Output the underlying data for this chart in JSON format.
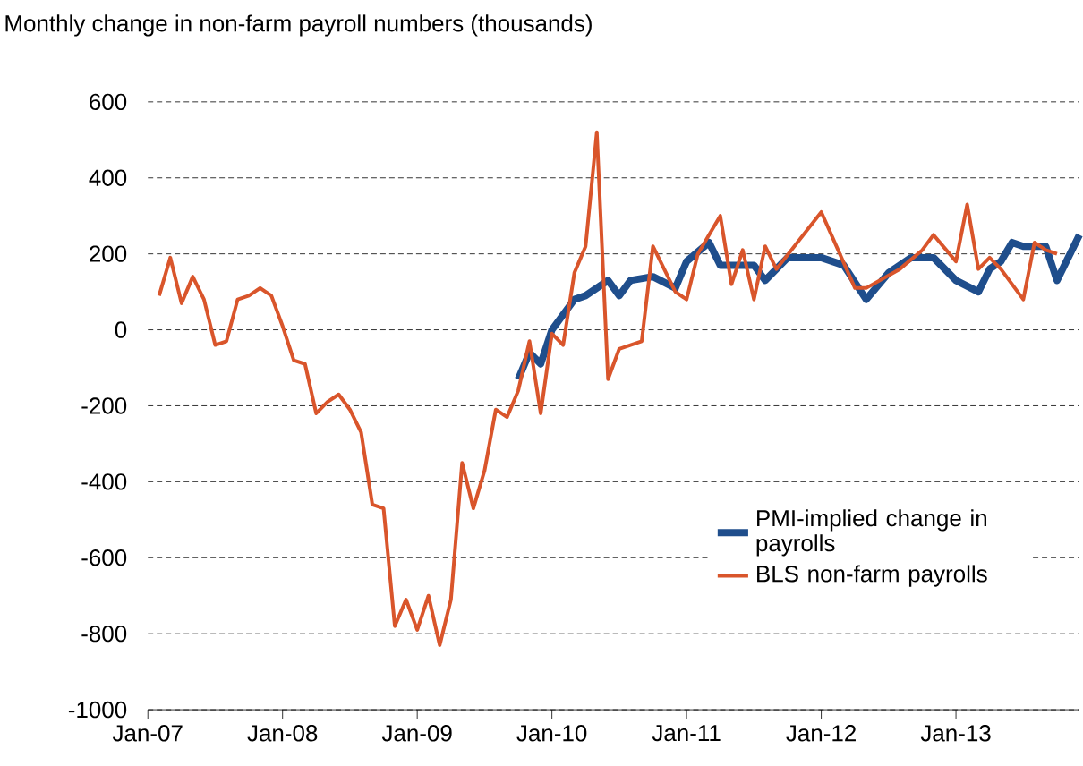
{
  "chart_data": {
    "type": "line",
    "title": "Monthly change in non-farm payroll numbers (thousands)",
    "ylim": [
      -1000,
      600
    ],
    "yticks": [
      -1000,
      -800,
      -600,
      -400,
      -200,
      0,
      200,
      400,
      600
    ],
    "xlim": [
      "2007-01",
      "2013-12"
    ],
    "xticks": [
      {
        "value": "2007-01",
        "label": "Jan-07"
      },
      {
        "value": "2008-01",
        "label": "Jan-08"
      },
      {
        "value": "2009-01",
        "label": "Jan-09"
      },
      {
        "value": "2010-01",
        "label": "Jan-10"
      },
      {
        "value": "2011-01",
        "label": "Jan-11"
      },
      {
        "value": "2012-01",
        "label": "Jan-12"
      },
      {
        "value": "2013-01",
        "label": "Jan-13"
      }
    ],
    "grid": "y",
    "legend": "bottom right",
    "series": [
      {
        "name": "PMI-implied change in payrolls",
        "color": "#1f4e8c",
        "x": [
          "2009-10",
          "2009-11",
          "2009-12",
          "2010-01",
          "2010-02",
          "2010-03",
          "2010-04",
          "2010-06",
          "2010-07",
          "2010-08",
          "2010-10",
          "2010-12",
          "2011-01",
          "2011-03",
          "2011-04",
          "2011-07",
          "2011-08",
          "2011-10",
          "2012-01",
          "2012-03",
          "2012-05",
          "2012-07",
          "2012-09",
          "2012-11",
          "2013-01",
          "2013-03",
          "2013-04",
          "2013-05",
          "2013-06",
          "2013-07",
          "2013-09",
          "2013-10",
          "2013-12"
        ],
        "values": [
          -130,
          -60,
          -90,
          0,
          40,
          80,
          90,
          130,
          90,
          130,
          140,
          110,
          180,
          230,
          170,
          170,
          130,
          190,
          190,
          170,
          80,
          150,
          190,
          190,
          130,
          100,
          160,
          180,
          230,
          220,
          220,
          130,
          250
        ]
      },
      {
        "name": "BLS non-farm payrolls",
        "color": "#d9552b",
        "x": [
          "2007-02",
          "2007-03",
          "2007-04",
          "2007-05",
          "2007-06",
          "2007-07",
          "2007-08",
          "2007-09",
          "2007-10",
          "2007-11",
          "2007-12",
          "2008-01",
          "2008-02",
          "2008-03",
          "2008-04",
          "2008-05",
          "2008-06",
          "2008-07",
          "2008-08",
          "2008-09",
          "2008-10",
          "2008-11",
          "2008-12",
          "2009-01",
          "2009-02",
          "2009-03",
          "2009-04",
          "2009-05",
          "2009-06",
          "2009-07",
          "2009-08",
          "2009-09",
          "2009-10",
          "2009-11",
          "2009-12",
          "2010-01",
          "2010-02",
          "2010-03",
          "2010-04",
          "2010-05",
          "2010-06",
          "2010-07",
          "2010-09",
          "2010-10",
          "2010-12",
          "2011-01",
          "2011-02",
          "2011-04",
          "2011-05",
          "2011-06",
          "2011-07",
          "2011-08",
          "2011-09",
          "2012-01",
          "2012-04",
          "2012-05",
          "2012-08",
          "2012-10",
          "2012-11",
          "2013-01",
          "2013-02",
          "2013-03",
          "2013-04",
          "2013-05",
          "2013-07",
          "2013-08",
          "2013-09",
          "2013-10"
        ],
        "values": [
          90,
          190,
          70,
          140,
          80,
          -40,
          -30,
          80,
          90,
          110,
          90,
          10,
          -80,
          -90,
          -220,
          -190,
          -170,
          -210,
          -270,
          -460,
          -470,
          -780,
          -710,
          -790,
          -700,
          -830,
          -710,
          -350,
          -470,
          -370,
          -210,
          -230,
          -160,
          -30,
          -220,
          -10,
          -40,
          150,
          220,
          520,
          -130,
          -50,
          -30,
          220,
          100,
          80,
          200,
          300,
          120,
          210,
          80,
          220,
          160,
          310,
          110,
          110,
          160,
          210,
          250,
          180,
          330,
          160,
          190,
          160,
          80,
          230,
          210,
          200
        ]
      }
    ]
  }
}
